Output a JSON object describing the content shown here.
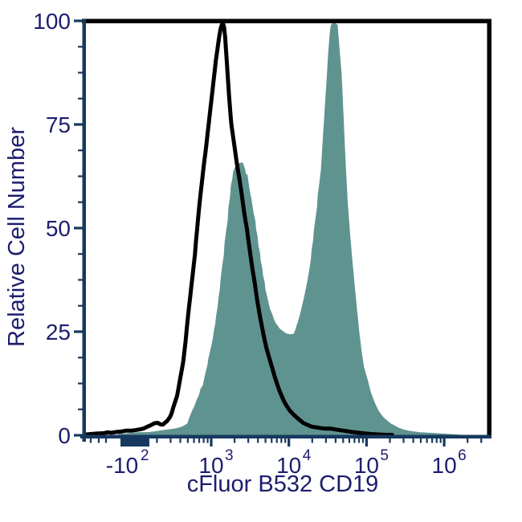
{
  "chart_data": {
    "type": "histogram",
    "subtype": "flow-cytometry-overlay",
    "title": "",
    "xlabel": "cFluor B532 CD19",
    "ylabel": "Relative Cell Number",
    "x_scale": "biexponential (log decades with compressed linear region near zero)",
    "x_coordinate_units": "u = decades along the biexponential axis (u=3 is 10^3, u=4 is 10^4, etc.)",
    "ylim": [
      0,
      100
    ],
    "grid": false,
    "legend": "none",
    "colors": {
      "label_text": "#1d1d6e",
      "axis_line": "#17395f",
      "plot_border": "#000000",
      "control_line": "#000000",
      "stained_fill": "#5f9390"
    },
    "y_ticks": [
      0,
      25,
      50,
      75,
      100
    ],
    "y_minor_step": 6.25,
    "x_ticks": [
      {
        "base": "-10",
        "exp": "2",
        "u": 1.852
      },
      {
        "base": "10",
        "exp": "3",
        "u": 3
      },
      {
        "base": "10",
        "exp": "4",
        "u": 4
      },
      {
        "base": "10",
        "exp": "5",
        "u": 5
      },
      {
        "base": "10",
        "exp": "6",
        "u": 6
      }
    ],
    "series": [
      {
        "name": "Unstained control (open black histogram)",
        "style": "open line",
        "color": "#000000",
        "peak": {
          "x_approx": "1.4e3",
          "y": 100
        },
        "points": [
          [
            1.39,
            0.2
          ],
          [
            1.52,
            0.4
          ],
          [
            1.62,
            0.5
          ],
          [
            1.66,
            0.7
          ],
          [
            1.72,
            0.6
          ],
          [
            1.78,
            0.8
          ],
          [
            1.84,
            0.9
          ],
          [
            1.9,
            1.1
          ],
          [
            1.97,
            1.1
          ],
          [
            2.04,
            1.3
          ],
          [
            2.1,
            1.5
          ],
          [
            2.14,
            1.7
          ],
          [
            2.18,
            2.1
          ],
          [
            2.22,
            2.4
          ],
          [
            2.27,
            2.9
          ],
          [
            2.31,
            3.0
          ],
          [
            2.35,
            2.6
          ],
          [
            2.38,
            2.6
          ],
          [
            2.41,
            3.1
          ],
          [
            2.43,
            3.4
          ],
          [
            2.45,
            3.9
          ],
          [
            2.47,
            4.4
          ],
          [
            2.49,
            5.3
          ],
          [
            2.51,
            6.6
          ],
          [
            2.53,
            7.8
          ],
          [
            2.56,
            9.5
          ],
          [
            2.58,
            11.5
          ],
          [
            2.6,
            13.6
          ],
          [
            2.62,
            15.7
          ],
          [
            2.64,
            17.8
          ],
          [
            2.655,
            20.2
          ],
          [
            2.67,
            22.7
          ],
          [
            2.685,
            25.6
          ],
          [
            2.7,
            28.5
          ],
          [
            2.715,
            31
          ],
          [
            2.73,
            33.5
          ],
          [
            2.745,
            36
          ],
          [
            2.76,
            38.5
          ],
          [
            2.775,
            41
          ],
          [
            2.79,
            43.5
          ],
          [
            2.805,
            47
          ],
          [
            2.82,
            50
          ],
          [
            2.835,
            53
          ],
          [
            2.85,
            56
          ],
          [
            2.865,
            58.5
          ],
          [
            2.88,
            61
          ],
          [
            2.895,
            63.5
          ],
          [
            2.91,
            66
          ],
          [
            2.925,
            68
          ],
          [
            2.94,
            70.5
          ],
          [
            2.955,
            73
          ],
          [
            2.97,
            75.5
          ],
          [
            2.985,
            78
          ],
          [
            3.0,
            80.5
          ],
          [
            3.015,
            83
          ],
          [
            3.03,
            85.5
          ],
          [
            3.045,
            88
          ],
          [
            3.06,
            90.5
          ],
          [
            3.075,
            92.5
          ],
          [
            3.09,
            94.5
          ],
          [
            3.105,
            96.5
          ],
          [
            3.12,
            98
          ],
          [
            3.135,
            99
          ],
          [
            3.15,
            99.5
          ],
          [
            3.165,
            98.5
          ],
          [
            3.18,
            96
          ],
          [
            3.19,
            93
          ],
          [
            3.2,
            90.5
          ],
          [
            3.21,
            87.5
          ],
          [
            3.22,
            84.7
          ],
          [
            3.23,
            82
          ],
          [
            3.24,
            79.5
          ],
          [
            3.25,
            77
          ],
          [
            3.26,
            75
          ],
          [
            3.275,
            73
          ],
          [
            3.29,
            71
          ],
          [
            3.305,
            69
          ],
          [
            3.32,
            67
          ],
          [
            3.335,
            65
          ],
          [
            3.35,
            63.4
          ],
          [
            3.37,
            61
          ],
          [
            3.39,
            58.5
          ],
          [
            3.405,
            56.4
          ],
          [
            3.42,
            54.3
          ],
          [
            3.44,
            52
          ],
          [
            3.46,
            49.8
          ],
          [
            3.475,
            47.6
          ],
          [
            3.49,
            45.5
          ],
          [
            3.505,
            43.5
          ],
          [
            3.52,
            41.5
          ],
          [
            3.54,
            39.1
          ],
          [
            3.56,
            36.8
          ],
          [
            3.575,
            34.8
          ],
          [
            3.59,
            32.8
          ],
          [
            3.61,
            30.6
          ],
          [
            3.63,
            28.5
          ],
          [
            3.65,
            26.5
          ],
          [
            3.67,
            24.6
          ],
          [
            3.69,
            22.8
          ],
          [
            3.71,
            21.1
          ],
          [
            3.74,
            19.1
          ],
          [
            3.77,
            17.2
          ],
          [
            3.795,
            15.6
          ],
          [
            3.82,
            14.0
          ],
          [
            3.85,
            12.3
          ],
          [
            3.88,
            10.7
          ],
          [
            3.91,
            9.4
          ],
          [
            3.94,
            8.1
          ],
          [
            3.975,
            7.0
          ],
          [
            4.01,
            6.0
          ],
          [
            4.055,
            5.1
          ],
          [
            4.1,
            4.3
          ],
          [
            4.145,
            3.6
          ],
          [
            4.19,
            2.9
          ],
          [
            4.24,
            2.5
          ],
          [
            4.29,
            2.1
          ],
          [
            4.355,
            1.9
          ],
          [
            4.42,
            1.7
          ],
          [
            4.48,
            1.6
          ],
          [
            4.54,
            1.6
          ],
          [
            4.6,
            1.4
          ],
          [
            4.67,
            1.2
          ],
          [
            4.74,
            1.0
          ],
          [
            4.81,
            0.8
          ],
          [
            4.9,
            0.6
          ],
          [
            4.99,
            0.4
          ],
          [
            5.07,
            0.3
          ],
          [
            5.16,
            0.2
          ],
          [
            5.25,
            0.1
          ],
          [
            5.33,
            0.1
          ]
        ]
      },
      {
        "name": "cFluor B532 CD19 stained (filled teal histogram)",
        "style": "filled",
        "color": "#5f9390",
        "peaks": [
          {
            "x_approx": "2.5e3",
            "y": 66
          },
          {
            "x_approx": "3.2e4",
            "y": 100
          }
        ],
        "valley": {
          "x_approx": "1e4",
          "y": 24
        },
        "points": [
          [
            1.81,
            0.2
          ],
          [
            1.9,
            0.3
          ],
          [
            2.0,
            0.5
          ],
          [
            2.09,
            0.6
          ],
          [
            2.18,
            0.6
          ],
          [
            2.27,
            0.8
          ],
          [
            2.35,
            1.0
          ],
          [
            2.42,
            1.2
          ],
          [
            2.5,
            1.4
          ],
          [
            2.56,
            1.6
          ],
          [
            2.62,
            1.9
          ],
          [
            2.66,
            2.3
          ],
          [
            2.7,
            2.8
          ],
          [
            2.72,
            3.9
          ],
          [
            2.75,
            5.4
          ],
          [
            2.79,
            7.0
          ],
          [
            2.82,
            8.5
          ],
          [
            2.85,
            9.7
          ],
          [
            2.87,
            11.2
          ],
          [
            2.9,
            12.0
          ],
          [
            2.92,
            14.0
          ],
          [
            2.94,
            15.5
          ],
          [
            2.96,
            17.0
          ],
          [
            2.97,
            18.4
          ],
          [
            2.99,
            20.0
          ],
          [
            3.01,
            21.7
          ],
          [
            3.03,
            23.5
          ],
          [
            3.04,
            25.0
          ],
          [
            3.06,
            27.0
          ],
          [
            3.07,
            28.7
          ],
          [
            3.09,
            31.0
          ],
          [
            3.1,
            32.9
          ],
          [
            3.12,
            35.5
          ],
          [
            3.13,
            38.0
          ],
          [
            3.15,
            41.0
          ],
          [
            3.17,
            43.4
          ],
          [
            3.18,
            46.5
          ],
          [
            3.2,
            49.2
          ],
          [
            3.22,
            52.0
          ],
          [
            3.23,
            55.0
          ],
          [
            3.25,
            57.5
          ],
          [
            3.26,
            60.1
          ],
          [
            3.28,
            62.0
          ],
          [
            3.29,
            63.6
          ],
          [
            3.32,
            64.9
          ],
          [
            3.36,
            65.5
          ],
          [
            3.4,
            65.7
          ],
          [
            3.43,
            64.1
          ],
          [
            3.44,
            63.0
          ],
          [
            3.46,
            62.8
          ],
          [
            3.48,
            60.1
          ],
          [
            3.49,
            58.9
          ],
          [
            3.51,
            57.0
          ],
          [
            3.52,
            55.8
          ],
          [
            3.54,
            53.5
          ],
          [
            3.56,
            51.8
          ],
          [
            3.57,
            49.8
          ],
          [
            3.59,
            47.8
          ],
          [
            3.6,
            45.9
          ],
          [
            3.62,
            44.0
          ],
          [
            3.63,
            42.1
          ],
          [
            3.65,
            40.3
          ],
          [
            3.66,
            38.6
          ],
          [
            3.68,
            36.9
          ],
          [
            3.69,
            35.3
          ],
          [
            3.71,
            33.6
          ],
          [
            3.73,
            32.0
          ],
          [
            3.75,
            30.5
          ],
          [
            3.78,
            29.1
          ],
          [
            3.8,
            28.0
          ],
          [
            3.82,
            27.1
          ],
          [
            3.85,
            26.4
          ],
          [
            3.87,
            25.8
          ],
          [
            3.9,
            25.3
          ],
          [
            3.92,
            25.0
          ],
          [
            3.95,
            24.6
          ],
          [
            3.97,
            24.4
          ],
          [
            4.0,
            24.3
          ],
          [
            4.02,
            24.2
          ],
          [
            4.05,
            24.3
          ],
          [
            4.07,
            24.4
          ],
          [
            4.09,
            25.4
          ],
          [
            4.11,
            26.6
          ],
          [
            4.13,
            27.8
          ],
          [
            4.15,
            29.1
          ],
          [
            4.17,
            30.6
          ],
          [
            4.19,
            32.2
          ],
          [
            4.21,
            33.9
          ],
          [
            4.23,
            35.7
          ],
          [
            4.25,
            37.7
          ],
          [
            4.27,
            39.9
          ],
          [
            4.29,
            42.2
          ],
          [
            4.3,
            44.6
          ],
          [
            4.32,
            47.0
          ],
          [
            4.33,
            49.6
          ],
          [
            4.35,
            52.2
          ],
          [
            4.37,
            55.0
          ],
          [
            4.38,
            57.9
          ],
          [
            4.4,
            60.9
          ],
          [
            4.42,
            64.0
          ],
          [
            4.43,
            67.1
          ],
          [
            4.44,
            70.1
          ],
          [
            4.45,
            73.1
          ],
          [
            4.46,
            76.0
          ],
          [
            4.47,
            78.9
          ],
          [
            4.48,
            81.8
          ],
          [
            4.49,
            84.7
          ],
          [
            4.5,
            87.9
          ],
          [
            4.51,
            91.1
          ],
          [
            4.52,
            93.7
          ],
          [
            4.53,
            96.3
          ],
          [
            4.54,
            98.0
          ],
          [
            4.55,
            99.0
          ],
          [
            4.57,
            99.3
          ],
          [
            4.59,
            99.4
          ],
          [
            4.6,
            99.2
          ],
          [
            4.62,
            99.0
          ],
          [
            4.63,
            96.7
          ],
          [
            4.64,
            94.4
          ],
          [
            4.655,
            91.0
          ],
          [
            4.67,
            87.6
          ],
          [
            4.68,
            83.7
          ],
          [
            4.69,
            79.8
          ],
          [
            4.7,
            75.5
          ],
          [
            4.71,
            71.1
          ],
          [
            4.72,
            67.3
          ],
          [
            4.73,
            63.4
          ],
          [
            4.74,
            59.8
          ],
          [
            4.75,
            56.2
          ],
          [
            4.765,
            52.5
          ],
          [
            4.78,
            48.8
          ],
          [
            4.795,
            45.5
          ],
          [
            4.81,
            42.2
          ],
          [
            4.825,
            39.2
          ],
          [
            4.84,
            36.2
          ],
          [
            4.855,
            33.3
          ],
          [
            4.87,
            30.4
          ],
          [
            4.885,
            27.6
          ],
          [
            4.9,
            24.8
          ],
          [
            4.915,
            22.5
          ],
          [
            4.93,
            20.2
          ],
          [
            4.945,
            18.3
          ],
          [
            4.96,
            16.5
          ],
          [
            4.985,
            14.8
          ],
          [
            5.01,
            13.2
          ],
          [
            5.03,
            11.7
          ],
          [
            5.05,
            10.3
          ],
          [
            5.075,
            9.0
          ],
          [
            5.1,
            7.8
          ],
          [
            5.125,
            6.8
          ],
          [
            5.15,
            5.8
          ],
          [
            5.185,
            4.9
          ],
          [
            5.22,
            4.1
          ],
          [
            5.265,
            3.4
          ],
          [
            5.31,
            2.7
          ],
          [
            5.36,
            2.2
          ],
          [
            5.41,
            1.7
          ],
          [
            5.47,
            1.3
          ],
          [
            5.53,
            1.0
          ],
          [
            5.6,
            0.8
          ],
          [
            5.68,
            0.6
          ],
          [
            5.77,
            0.5
          ],
          [
            5.86,
            0.4
          ],
          [
            5.95,
            0.3
          ],
          [
            6.05,
            0.2
          ],
          [
            6.12,
            0.1
          ],
          [
            6.2,
            0.0
          ]
        ]
      }
    ]
  }
}
